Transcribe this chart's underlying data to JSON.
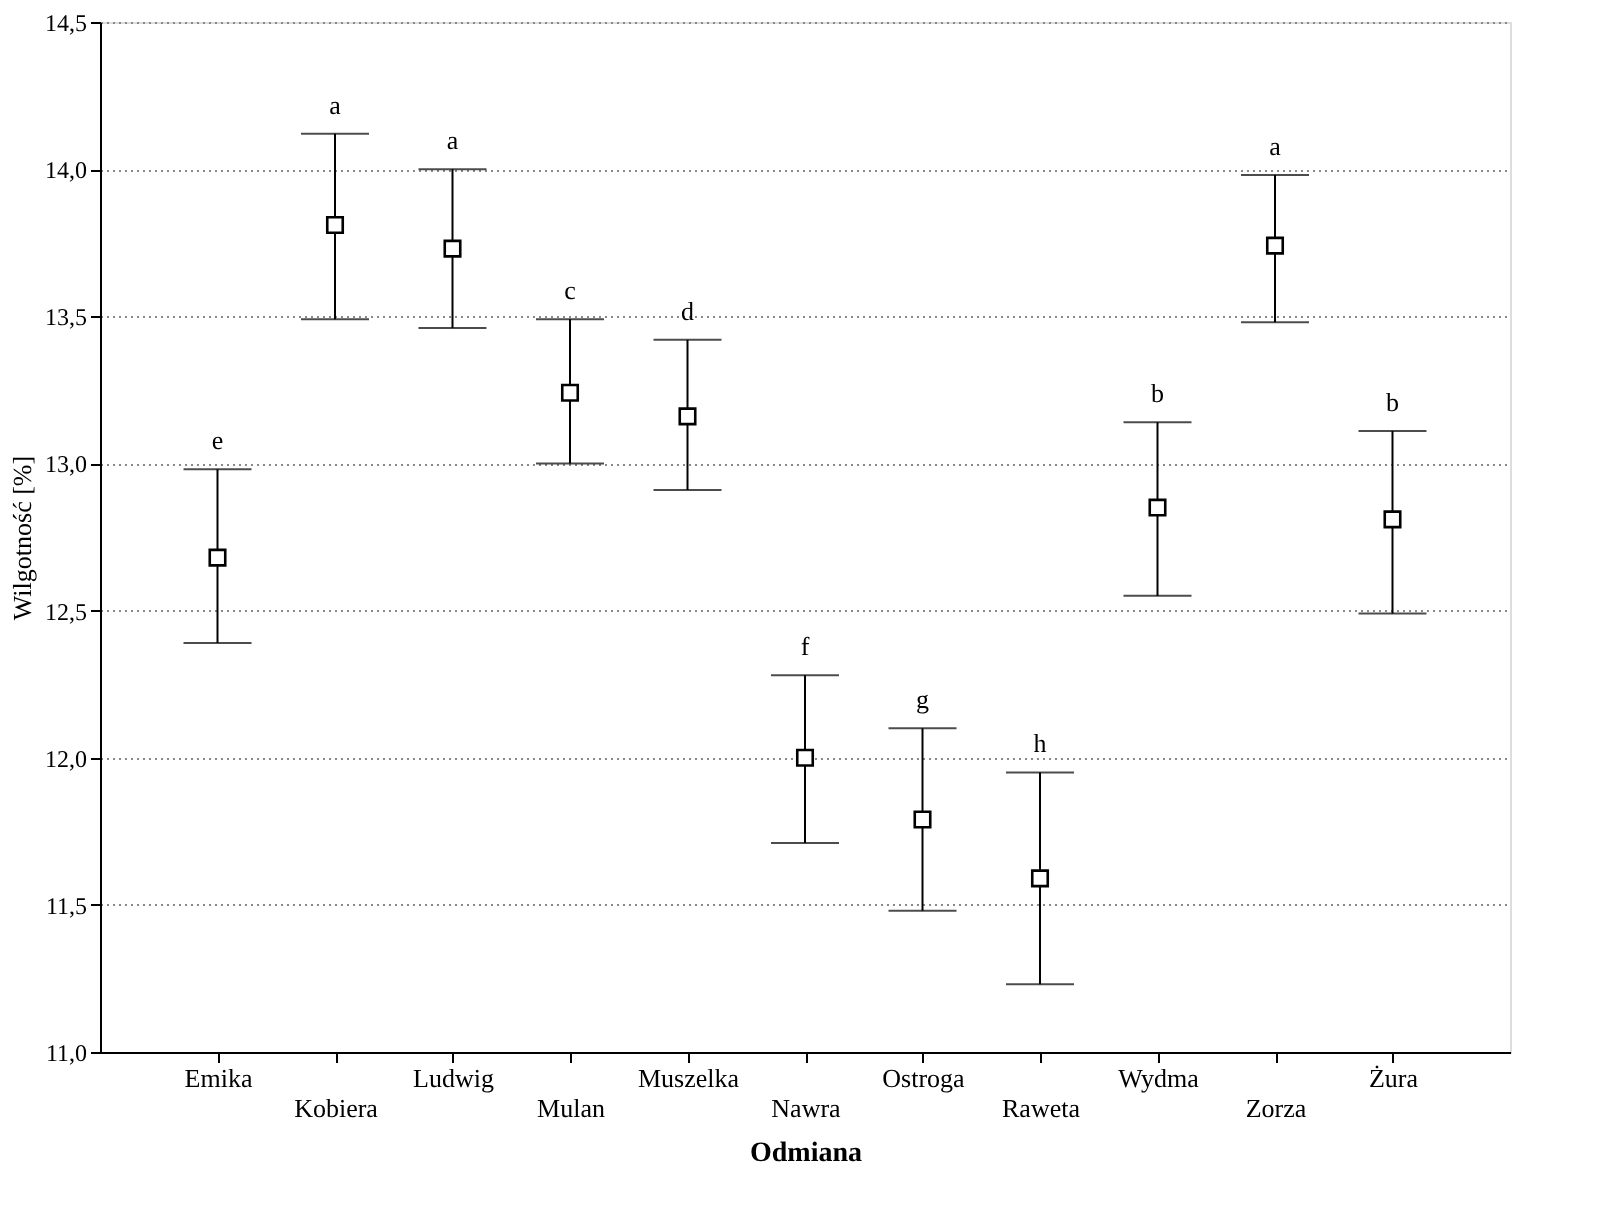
{
  "chart_data": {
    "type": "scatter",
    "xlabel": "Odmiana",
    "ylabel": "Wilgotność [%]",
    "categories": [
      "Emika",
      "Kobiera",
      "Ludwig",
      "Mulan",
      "Muszelka",
      "Nawra",
      "Ostroga",
      "Raweta",
      "Wydma",
      "Zorza",
      "Żura"
    ],
    "series": [
      {
        "color": "#000000",
        "values": [
          12.68,
          13.81,
          13.73,
          13.24,
          13.16,
          12.0,
          11.79,
          11.59,
          12.85,
          13.74,
          12.81
        ],
        "errors": [
          [
            12.39,
            12.98
          ],
          [
            13.49,
            14.12
          ],
          [
            13.46,
            14.0
          ],
          [
            13.0,
            13.49
          ],
          [
            12.91,
            13.42
          ],
          [
            11.71,
            12.28
          ],
          [
            11.48,
            12.1
          ],
          [
            11.23,
            11.95
          ],
          [
            12.55,
            13.14
          ],
          [
            13.48,
            13.98
          ],
          [
            12.49,
            13.11
          ]
        ]
      }
    ],
    "ylim": [
      11.0,
      14.5
    ],
    "yticks": [
      {
        "value": 11.0,
        "label": "11,0"
      },
      {
        "value": 11.5,
        "label": "11,5"
      },
      {
        "value": 12.0,
        "label": "12,0"
      },
      {
        "value": 12.5,
        "label": "12,5"
      },
      {
        "value": 13.0,
        "label": "13,0"
      },
      {
        "value": 13.5,
        "label": "13,5"
      },
      {
        "value": 14.0,
        "label": "14,0"
      },
      {
        "value": 14.5,
        "label": "14,5"
      }
    ],
    "annotations": [
      {
        "text": "e",
        "x": "Emika",
        "y": 12.98
      },
      {
        "text": "a",
        "x": "Kobiera",
        "y": 14.12
      },
      {
        "text": "a",
        "x": "Ludwig",
        "y": 14.0
      },
      {
        "text": "c",
        "x": "Mulan",
        "y": 13.49
      },
      {
        "text": "d",
        "x": "Muszelka",
        "y": 13.42
      },
      {
        "text": "f",
        "x": "Nawra",
        "y": 12.28
      },
      {
        "text": "g",
        "x": "Ostroga",
        "y": 12.1
      },
      {
        "text": "h",
        "x": "Raweta",
        "y": 11.95
      },
      {
        "text": "b",
        "x": "Wydma",
        "y": 13.14
      },
      {
        "text": "a",
        "x": "Zorza",
        "y": 13.98
      },
      {
        "text": "b",
        "x": "Żura",
        "y": 13.11
      }
    ],
    "grid": "y",
    "marker": "square"
  }
}
